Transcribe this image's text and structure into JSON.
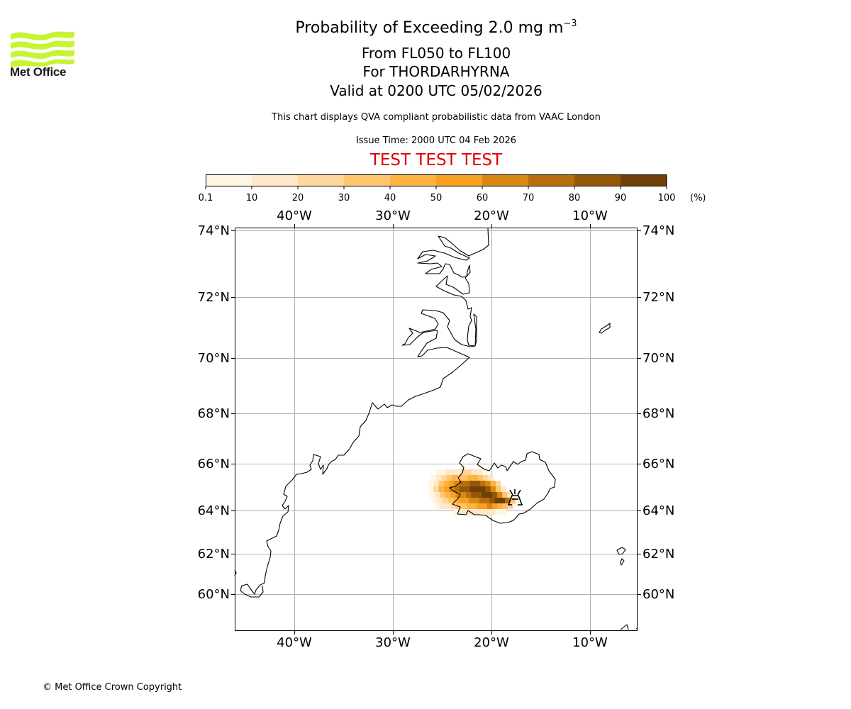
{
  "header": {
    "title_main": "Probability of Exceeding 2.0 mg m",
    "title_exponent": "−3",
    "levels": "From FL050 to FL100",
    "volcano": "For THORDARHYRNA",
    "valid": "Valid at 0200 UTC 05/02/2026",
    "description": "This chart displays QVA compliant probabilistic data from VAAC London",
    "issue_time": "Issue Time: 2000 UTC 04 Feb 2026",
    "test_banner": "TEST TEST TEST"
  },
  "logo": {
    "text": "Met Office",
    "color": "#c6f432"
  },
  "colorbar": {
    "unit": "(%)",
    "ticks": [
      "0.1",
      "10",
      "20",
      "30",
      "40",
      "50",
      "60",
      "70",
      "80",
      "90",
      "100"
    ],
    "colors": [
      "#fff5e3",
      "#ffe8c7",
      "#ffd79c",
      "#ffc56c",
      "#ffb342",
      "#f9a021",
      "#d98812",
      "#b86e0c",
      "#935709",
      "#6e3f07"
    ]
  },
  "map": {
    "lon_labels": [
      "40°W",
      "30°W",
      "20°W",
      "10°W"
    ],
    "lat_labels": [
      "74°N",
      "72°N",
      "70°N",
      "68°N",
      "66°N",
      "64°N",
      "62°N",
      "60°N"
    ],
    "volcano_icon": "volcano-icon"
  },
  "footer": {
    "copyright": "© Met Office Crown Copyright"
  }
}
